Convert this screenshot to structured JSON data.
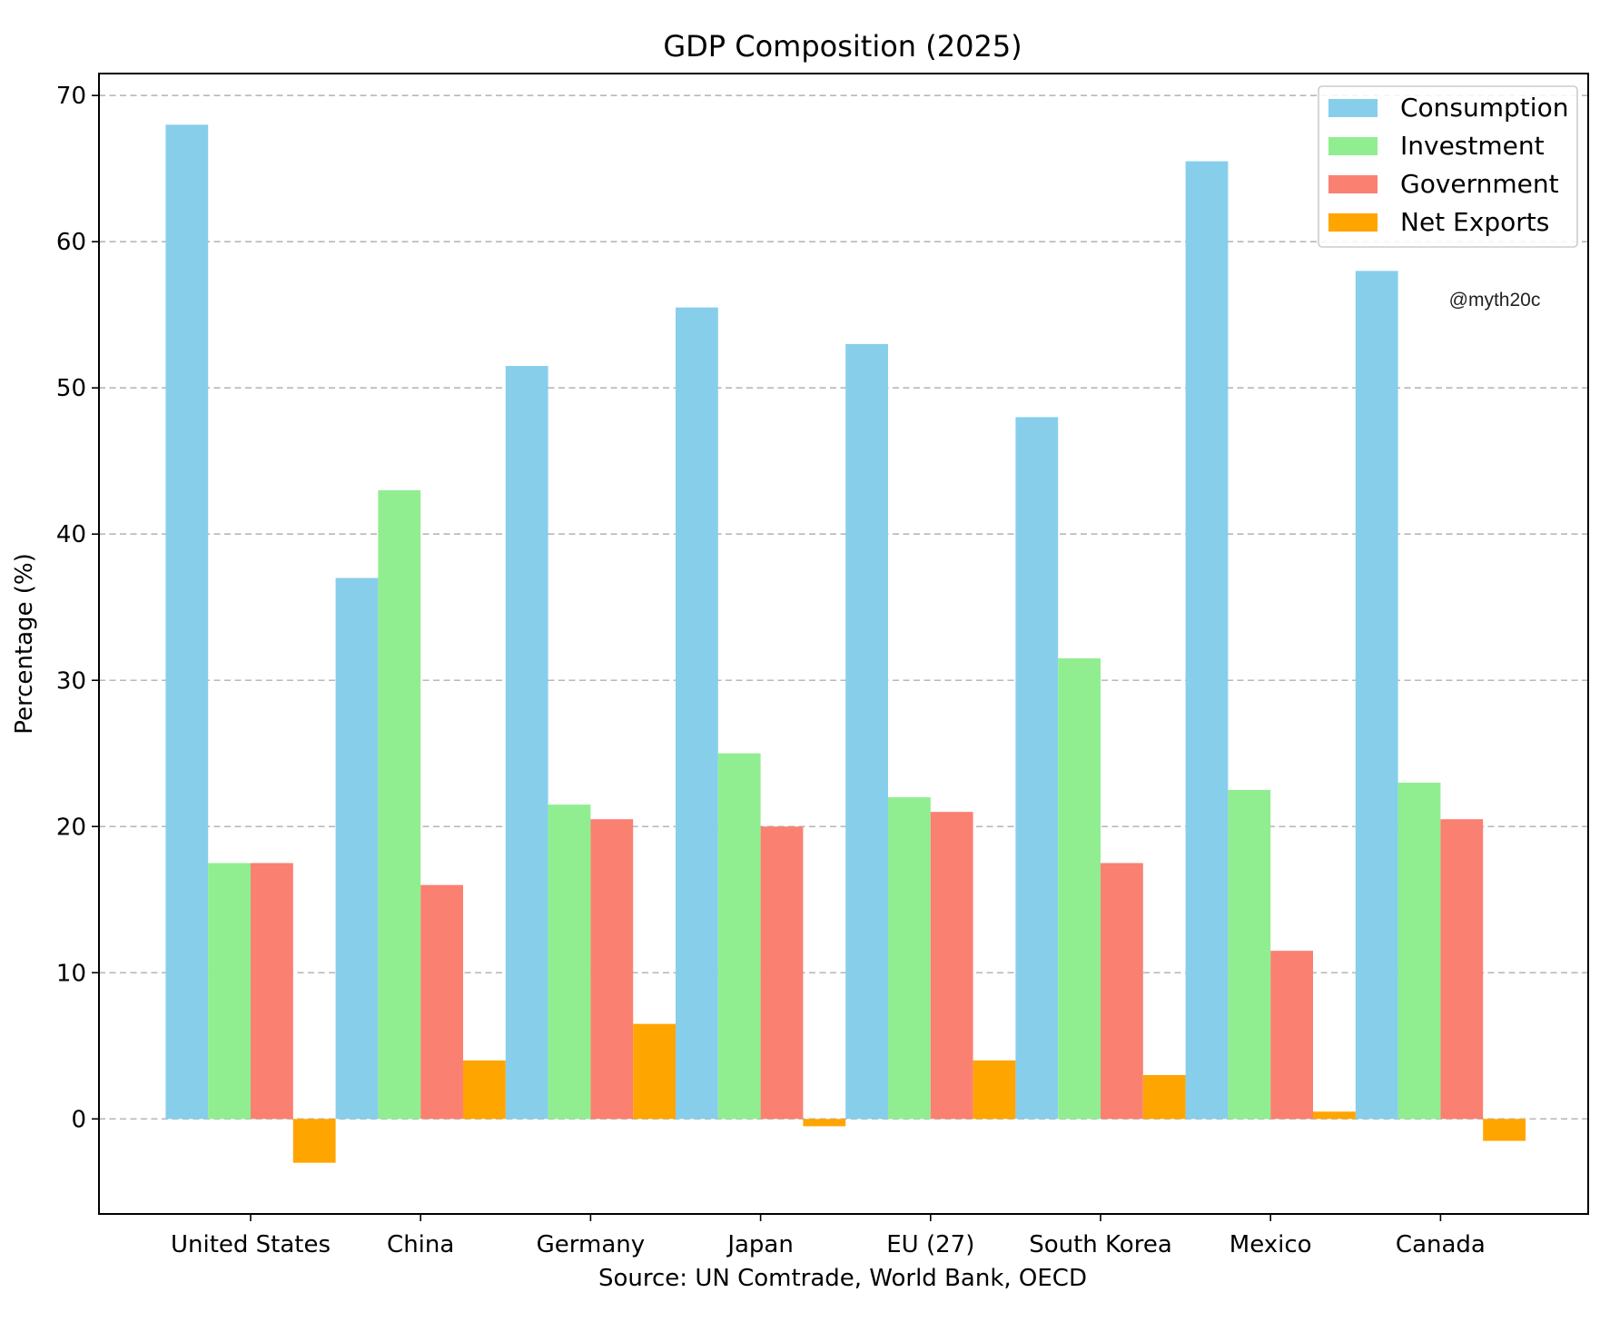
{
  "chart_data": {
    "type": "bar",
    "title": "GDP Composition (2025)",
    "xlabel": "Source: UN Comtrade, World Bank, OECD",
    "ylabel": "Percentage (%)",
    "watermark": "@myth20c",
    "categories": [
      "United States",
      "China",
      "Germany",
      "Japan",
      "EU (27)",
      "South Korea",
      "Mexico",
      "Canada"
    ],
    "series": [
      {
        "name": "Consumption",
        "color": "#87ceeb",
        "values": [
          68,
          37,
          51.5,
          55.5,
          53,
          48,
          65.5,
          58
        ]
      },
      {
        "name": "Investment",
        "color": "#90ee90",
        "values": [
          17.5,
          43,
          21.5,
          25,
          22,
          31.5,
          22.5,
          23
        ]
      },
      {
        "name": "Government",
        "color": "#fa8072",
        "values": [
          17.5,
          16,
          20.5,
          20,
          21,
          17.5,
          11.5,
          20.5
        ]
      },
      {
        "name": "Net Exports",
        "color": "#ffa500",
        "values": [
          -3,
          4,
          6.5,
          -0.5,
          4,
          3,
          0.5,
          -1.5
        ]
      }
    ],
    "ylim": [
      -6.5,
      71.5
    ],
    "yticks": [
      0,
      10,
      20,
      30,
      40,
      50,
      60,
      70
    ],
    "grid": "y-dashed",
    "legend": "top-right"
  }
}
